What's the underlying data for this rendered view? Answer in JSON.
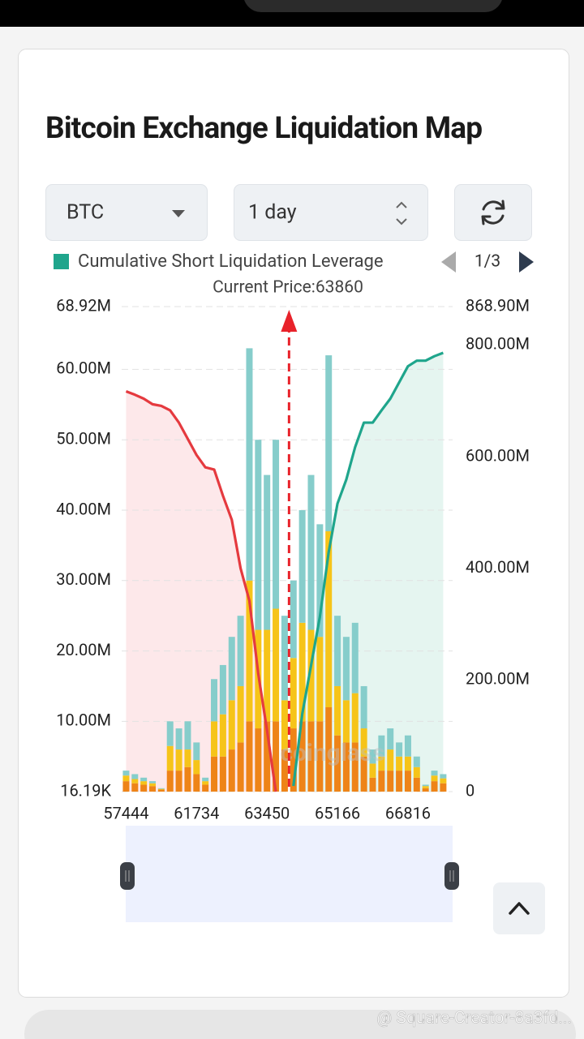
{
  "header": {
    "title": "Bitcoin Exchange Liquidation Map"
  },
  "controls": {
    "symbol": "BTC",
    "period": "1 day",
    "legend_page": "1/3"
  },
  "chart_data": {
    "type": "bar",
    "annotation": "Current Price:63860",
    "watermark": "coinglass",
    "categories": [
      57444,
      null,
      null,
      null,
      null,
      null,
      null,
      null,
      61734,
      null,
      null,
      null,
      null,
      null,
      null,
      null,
      63450,
      null,
      null,
      null,
      null,
      null,
      null,
      null,
      65166,
      null,
      null,
      null,
      null,
      null,
      null,
      null,
      66816,
      null,
      null,
      null,
      null
    ],
    "ylim": [
      16190,
      68920000
    ],
    "yticks": [
      {
        "value": 16190,
        "label": "16.19K"
      },
      {
        "value": 10000000,
        "label": "10.00M"
      },
      {
        "value": 20000000,
        "label": "20.00M"
      },
      {
        "value": 30000000,
        "label": "30.00M"
      },
      {
        "value": 40000000,
        "label": "40.00M"
      },
      {
        "value": 50000000,
        "label": "50.00M"
      },
      {
        "value": 60000000,
        "label": "60.00M"
      },
      {
        "value": 68920000,
        "label": "68.92M"
      }
    ],
    "y2lim": [
      0,
      868900000
    ],
    "y2ticks": [
      0,
      {
        "value": 200000000,
        "label": "200.00M"
      },
      {
        "value": 400000000,
        "label": "400.00M"
      },
      {
        "value": 600000000,
        "label": "600.00M"
      },
      {
        "value": 800000000,
        "label": "800.00M"
      },
      {
        "value": 868900000,
        "label": "868.90M"
      }
    ],
    "grid": true,
    "series": [
      {
        "color": "#ee8418",
        "values": [
          1500000,
          1200000,
          1000000,
          800000,
          300000,
          3000000,
          3000000,
          3500000,
          2500000,
          1000000,
          5000000,
          5000000,
          6000000,
          7000000,
          10000000,
          9000000,
          10000000,
          10000000,
          6000000,
          9000000,
          10000000,
          10000000,
          10000000,
          12000000,
          8000000,
          7000000,
          7000000,
          5000000,
          2000000,
          3000000,
          3000000,
          3000000,
          3000000,
          2000000,
          500000,
          1500000,
          1200000
        ]
      },
      {
        "color": "#f6c419",
        "values": [
          800000,
          600000,
          500000,
          400000,
          100000,
          3500000,
          3000000,
          2500000,
          2000000,
          500000,
          5000000,
          6000000,
          7000000,
          8000000,
          20000000,
          14000000,
          13000000,
          16000000,
          7000000,
          10000000,
          14000000,
          13000000,
          12000000,
          25000000,
          7000000,
          6000000,
          7000000,
          4000000,
          2000000,
          2000000,
          3000000,
          2000000,
          2000000,
          1500000,
          300000,
          800000,
          700000
        ]
      },
      {
        "color": "#86cdcb",
        "values": [
          700000,
          700000,
          500000,
          300000,
          100000,
          3500000,
          3000000,
          4000000,
          2500000,
          500000,
          6000000,
          7000000,
          9000000,
          10000000,
          33000000,
          27000000,
          22000000,
          24000000,
          12000000,
          11000000,
          16000000,
          22000000,
          16000000,
          25000000,
          10000000,
          9000000,
          10000000,
          6000000,
          2000000,
          3000000,
          3000000,
          2000000,
          3000000,
          1500000,
          200000,
          700000,
          600000
        ]
      },
      {
        "type": "line",
        "axis": "y2",
        "color": "#e53a3f",
        "area": "#fde8ea",
        "values": [
          717000000,
          711000000,
          704000000,
          694000000,
          691000000,
          683000000,
          661000000,
          632000000,
          603000000,
          581000000,
          577000000,
          530000000,
          487000000,
          400000000,
          342000000,
          212000000,
          110000000,
          0,
          null,
          null,
          null,
          null,
          null,
          null,
          null,
          null,
          null,
          null,
          null,
          null,
          null,
          null,
          null,
          null,
          null,
          null,
          null
        ]
      },
      {
        "type": "line",
        "axis": "y2",
        "name": "Cumulative Short Liquidation Leverage",
        "color": "#1fa58c",
        "area": "#e5f5f0",
        "values": [
          null,
          null,
          null,
          null,
          null,
          null,
          null,
          null,
          null,
          null,
          null,
          null,
          null,
          null,
          null,
          null,
          null,
          null,
          null,
          10000000,
          139000000,
          226000000,
          313000000,
          429000000,
          516000000,
          559000000,
          617000000,
          661000000,
          661000000,
          683000000,
          704000000,
          733000000,
          762000000,
          772000000,
          772000000,
          780000000,
          786000000
        ]
      }
    ]
  },
  "footer": {
    "watermark": "@ Square-Creator-8a3fd..."
  }
}
